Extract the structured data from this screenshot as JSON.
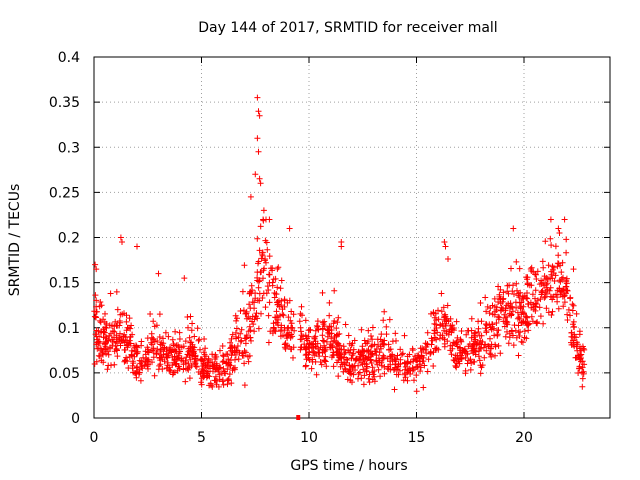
{
  "chart_data": {
    "type": "scatter",
    "title": "Day 144 of 2017, SRMTID for receiver mall",
    "xlabel": "GPS time / hours",
    "ylabel": "SRMTID / TECUs",
    "xlim": [
      0,
      24
    ],
    "ylim": [
      0,
      0.4
    ],
    "x_ticks": [
      0,
      5,
      10,
      15,
      20
    ],
    "x_tick_labels": [
      "0",
      "5",
      "10",
      "15",
      "20"
    ],
    "y_ticks": [
      0,
      0.05,
      0.1,
      0.15,
      0.2,
      0.25,
      0.3,
      0.35,
      0.4
    ],
    "y_tick_labels": [
      "0",
      "0.05",
      "0.1",
      "0.15",
      "0.2",
      "0.25",
      "0.3",
      "0.35",
      "0.4"
    ],
    "grid": true,
    "marker": "+",
    "series_color": "#ff0000",
    "gap_marker": {
      "x": 9.5,
      "y": 0
    },
    "profile": {
      "hours": [
        0.0,
        0.5,
        1.0,
        1.5,
        2.0,
        2.5,
        3.0,
        3.5,
        4.0,
        4.5,
        5.0,
        5.5,
        6.0,
        6.5,
        7.0,
        7.5,
        8.0,
        8.5,
        9.0,
        9.5,
        10.0,
        10.5,
        11.0,
        11.5,
        12.0,
        12.5,
        13.0,
        13.5,
        14.0,
        14.5,
        15.0,
        15.5,
        16.0,
        16.5,
        17.0,
        17.5,
        18.0,
        18.5,
        19.0,
        19.5,
        20.0,
        20.5,
        21.0,
        21.5,
        22.0,
        22.5,
        22.8
      ],
      "mean": [
        0.1,
        0.08,
        0.09,
        0.09,
        0.06,
        0.07,
        0.075,
        0.07,
        0.07,
        0.07,
        0.06,
        0.055,
        0.055,
        0.07,
        0.09,
        0.13,
        0.17,
        0.12,
        0.09,
        0.1,
        0.07,
        0.085,
        0.09,
        0.07,
        0.06,
        0.065,
        0.065,
        0.075,
        0.065,
        0.06,
        0.06,
        0.075,
        0.095,
        0.1,
        0.07,
        0.075,
        0.085,
        0.1,
        0.11,
        0.12,
        0.12,
        0.13,
        0.14,
        0.15,
        0.14,
        0.07,
        0.06
      ],
      "spread": [
        0.035,
        0.025,
        0.03,
        0.03,
        0.02,
        0.02,
        0.025,
        0.02,
        0.02,
        0.02,
        0.02,
        0.02,
        0.02,
        0.025,
        0.04,
        0.05,
        0.05,
        0.035,
        0.025,
        0.03,
        0.02,
        0.025,
        0.03,
        0.02,
        0.02,
        0.02,
        0.02,
        0.025,
        0.02,
        0.02,
        0.02,
        0.025,
        0.03,
        0.03,
        0.02,
        0.02,
        0.025,
        0.03,
        0.035,
        0.035,
        0.035,
        0.03,
        0.03,
        0.035,
        0.035,
        0.025,
        0.02
      ],
      "n_points": 1700
    },
    "peaks": [
      {
        "x": 0.05,
        "y": 0.17
      },
      {
        "x": 0.1,
        "y": 0.165
      },
      {
        "x": 1.25,
        "y": 0.2
      },
      {
        "x": 1.3,
        "y": 0.195
      },
      {
        "x": 2.0,
        "y": 0.19
      },
      {
        "x": 3.0,
        "y": 0.16
      },
      {
        "x": 4.2,
        "y": 0.155
      },
      {
        "x": 7.3,
        "y": 0.245
      },
      {
        "x": 7.5,
        "y": 0.27
      },
      {
        "x": 7.6,
        "y": 0.355
      },
      {
        "x": 7.65,
        "y": 0.34
      },
      {
        "x": 7.7,
        "y": 0.335
      },
      {
        "x": 7.6,
        "y": 0.31
      },
      {
        "x": 7.65,
        "y": 0.295
      },
      {
        "x": 7.7,
        "y": 0.265
      },
      {
        "x": 7.75,
        "y": 0.26
      },
      {
        "x": 7.9,
        "y": 0.23
      },
      {
        "x": 8.0,
        "y": 0.22
      },
      {
        "x": 9.1,
        "y": 0.21
      },
      {
        "x": 11.5,
        "y": 0.195
      },
      {
        "x": 11.5,
        "y": 0.19
      },
      {
        "x": 16.3,
        "y": 0.195
      },
      {
        "x": 16.35,
        "y": 0.19
      },
      {
        "x": 19.5,
        "y": 0.21
      },
      {
        "x": 21.6,
        "y": 0.21
      },
      {
        "x": 21.65,
        "y": 0.205
      },
      {
        "x": 22.3,
        "y": 0.165
      }
    ]
  }
}
